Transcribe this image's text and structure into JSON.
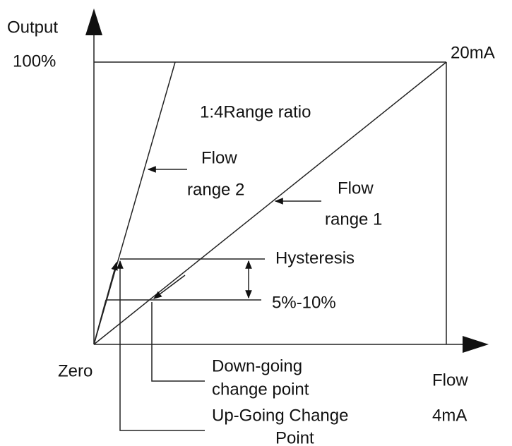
{
  "axes": {
    "y_label": "Output",
    "y_max": "100%",
    "x_label": "Flow",
    "x_unit": "4mA",
    "origin": "Zero",
    "top_right": "20mA"
  },
  "title": "1:4Range ratio",
  "labels": {
    "flow_range_2": [
      "Flow",
      "range 2"
    ],
    "flow_range_1": [
      "Flow",
      "range 1"
    ],
    "hysteresis": [
      "Hysteresis",
      "5%-10%"
    ],
    "down_going": [
      "Down-going",
      "change point"
    ],
    "up_going": [
      "Up-Going Change",
      "Point"
    ]
  }
}
